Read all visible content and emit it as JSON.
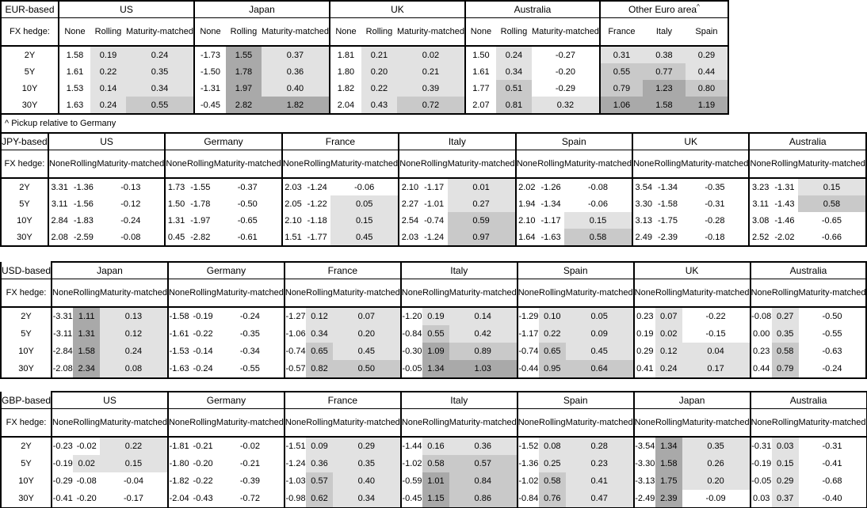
{
  "colors": {
    "shade_light": "#e2e2e2",
    "shade_medium": "#c9c9c9",
    "shade_dark": "#a9a9a9",
    "border": "#000000",
    "background": "#ffffff"
  },
  "footnote": "^ Pickup relative to Germany",
  "shared": {
    "fx_hedge_label": "FX hedge:",
    "col_headers": [
      "None",
      "Rolling",
      "Maturity-matched"
    ],
    "row_labels": [
      "2Y",
      "5Y",
      "10Y",
      "30Y"
    ]
  },
  "tables": [
    {
      "id": "eur",
      "base_label": "EUR-based",
      "groups": [
        {
          "name": "US",
          "rows": [
            [
              "1.58",
              "0.19",
              "0.24"
            ],
            [
              "1.61",
              "0.22",
              "0.35"
            ],
            [
              "1.53",
              "0.14",
              "0.34"
            ],
            [
              "1.63",
              "0.24",
              "0.55"
            ]
          ]
        },
        {
          "name": "Japan",
          "rows": [
            [
              "-1.73",
              "1.55",
              "0.37"
            ],
            [
              "-1.50",
              "1.78",
              "0.36"
            ],
            [
              "-1.31",
              "1.97",
              "0.40"
            ],
            [
              "-0.45",
              "2.82",
              "1.82"
            ]
          ]
        },
        {
          "name": "UK",
          "rows": [
            [
              "1.81",
              "0.21",
              "0.02"
            ],
            [
              "1.80",
              "0.20",
              "0.21"
            ],
            [
              "1.82",
              "0.22",
              "0.39"
            ],
            [
              "2.04",
              "0.43",
              "0.72"
            ]
          ]
        },
        {
          "name": "Australia",
          "rows": [
            [
              "1.50",
              "0.24",
              "-0.27"
            ],
            [
              "1.61",
              "0.34",
              "-0.20"
            ],
            [
              "1.77",
              "0.51",
              "-0.29"
            ],
            [
              "2.07",
              "0.81",
              "0.32"
            ]
          ]
        },
        {
          "name": "Other Euro area",
          "sup": "^",
          "shade_all": true,
          "cols": [
            "France",
            "Italy",
            "Spain"
          ],
          "rows": [
            [
              "0.31",
              "0.38",
              "0.29"
            ],
            [
              "0.55",
              "0.77",
              "0.44"
            ],
            [
              "0.79",
              "1.23",
              "0.80"
            ],
            [
              "1.06",
              "1.58",
              "1.19"
            ]
          ]
        }
      ]
    },
    {
      "id": "jpy",
      "base_label": "JPY-based",
      "groups": [
        {
          "name": "US",
          "rows": [
            [
              "3.31",
              "-1.36",
              "-0.13"
            ],
            [
              "3.11",
              "-1.56",
              "-0.12"
            ],
            [
              "2.84",
              "-1.83",
              "-0.24"
            ],
            [
              "2.08",
              "-2.59",
              "-0.08"
            ]
          ]
        },
        {
          "name": "Germany",
          "rows": [
            [
              "1.73",
              "-1.55",
              "-0.37"
            ],
            [
              "1.50",
              "-1.78",
              "-0.50"
            ],
            [
              "1.31",
              "-1.97",
              "-0.65"
            ],
            [
              "0.45",
              "-2.82",
              "-0.61"
            ]
          ]
        },
        {
          "name": "France",
          "rows": [
            [
              "2.03",
              "-1.24",
              "-0.06"
            ],
            [
              "2.05",
              "-1.22",
              "0.05"
            ],
            [
              "2.10",
              "-1.18",
              "0.15"
            ],
            [
              "1.51",
              "-1.77",
              "0.45"
            ]
          ]
        },
        {
          "name": "Italy",
          "rows": [
            [
              "2.10",
              "-1.17",
              "0.01"
            ],
            [
              "2.27",
              "-1.01",
              "0.27"
            ],
            [
              "2.54",
              "-0.74",
              "0.59"
            ],
            [
              "2.03",
              "-1.24",
              "0.97"
            ]
          ]
        },
        {
          "name": "Spain",
          "rows": [
            [
              "2.02",
              "-1.26",
              "-0.08"
            ],
            [
              "1.94",
              "-1.34",
              "-0.06"
            ],
            [
              "2.10",
              "-1.17",
              "0.15"
            ],
            [
              "1.64",
              "-1.63",
              "0.58"
            ]
          ]
        },
        {
          "name": "UK",
          "rows": [
            [
              "3.54",
              "-1.34",
              "-0.35"
            ],
            [
              "3.30",
              "-1.58",
              "-0.31"
            ],
            [
              "3.13",
              "-1.75",
              "-0.28"
            ],
            [
              "2.49",
              "-2.39",
              "-0.18"
            ]
          ]
        },
        {
          "name": "Australia",
          "rows": [
            [
              "3.23",
              "-1.31",
              "0.15"
            ],
            [
              "3.11",
              "-1.43",
              "0.58"
            ],
            [
              "3.08",
              "-1.46",
              "-0.65"
            ],
            [
              "2.52",
              "-2.02",
              "-0.66"
            ]
          ]
        }
      ]
    },
    {
      "id": "usd",
      "base_label": "USD-based",
      "groups": [
        {
          "name": "Japan",
          "rows": [
            [
              "-3.31",
              "1.11",
              "0.13"
            ],
            [
              "-3.11",
              "1.31",
              "0.12"
            ],
            [
              "-2.84",
              "1.58",
              "0.24"
            ],
            [
              "-2.08",
              "2.34",
              "0.08"
            ]
          ]
        },
        {
          "name": "Germany",
          "rows": [
            [
              "-1.58",
              "-0.19",
              "-0.24"
            ],
            [
              "-1.61",
              "-0.22",
              "-0.35"
            ],
            [
              "-1.53",
              "-0.14",
              "-0.34"
            ],
            [
              "-1.63",
              "-0.24",
              "-0.55"
            ]
          ]
        },
        {
          "name": "France",
          "rows": [
            [
              "-1.27",
              "0.12",
              "0.07"
            ],
            [
              "-1.06",
              "0.34",
              "0.20"
            ],
            [
              "-0.74",
              "0.65",
              "0.45"
            ],
            [
              "-0.57",
              "0.82",
              "0.50"
            ]
          ]
        },
        {
          "name": "Italy",
          "rows": [
            [
              "-1.20",
              "0.19",
              "0.14"
            ],
            [
              "-0.84",
              "0.55",
              "0.42"
            ],
            [
              "-0.30",
              "1.09",
              "0.89"
            ],
            [
              "-0.05",
              "1.34",
              "1.03"
            ]
          ]
        },
        {
          "name": "Spain",
          "rows": [
            [
              "-1.29",
              "0.10",
              "0.05"
            ],
            [
              "-1.17",
              "0.22",
              "0.09"
            ],
            [
              "-0.74",
              "0.65",
              "0.45"
            ],
            [
              "-0.44",
              "0.95",
              "0.64"
            ]
          ]
        },
        {
          "name": "UK",
          "rows": [
            [
              "0.23",
              "0.07",
              "-0.22"
            ],
            [
              "0.19",
              "0.02",
              "-0.15"
            ],
            [
              "0.29",
              "0.12",
              "0.04"
            ],
            [
              "0.41",
              "0.24",
              "0.17"
            ]
          ]
        },
        {
          "name": "Australia",
          "rows": [
            [
              "-0.08",
              "0.27",
              "-0.50"
            ],
            [
              "0.00",
              "0.35",
              "-0.55"
            ],
            [
              "0.23",
              "0.58",
              "-0.63"
            ],
            [
              "0.44",
              "0.79",
              "-0.24"
            ]
          ]
        }
      ]
    },
    {
      "id": "gbp",
      "base_label": "GBP-based",
      "groups": [
        {
          "name": "US",
          "rows": [
            [
              "-0.23",
              "-0.02",
              "0.22"
            ],
            [
              "-0.19",
              "0.02",
              "0.15"
            ],
            [
              "-0.29",
              "-0.08",
              "-0.04"
            ],
            [
              "-0.41",
              "-0.20",
              "-0.17"
            ]
          ]
        },
        {
          "name": "Germany",
          "rows": [
            [
              "-1.81",
              "-0.21",
              "-0.02"
            ],
            [
              "-1.80",
              "-0.20",
              "-0.21"
            ],
            [
              "-1.82",
              "-0.22",
              "-0.39"
            ],
            [
              "-2.04",
              "-0.43",
              "-0.72"
            ]
          ]
        },
        {
          "name": "France",
          "rows": [
            [
              "-1.51",
              "0.09",
              "0.29"
            ],
            [
              "-1.24",
              "0.36",
              "0.35"
            ],
            [
              "-1.03",
              "0.57",
              "0.40"
            ],
            [
              "-0.98",
              "0.62",
              "0.34"
            ]
          ]
        },
        {
          "name": "Italy",
          "rows": [
            [
              "-1.44",
              "0.16",
              "0.36"
            ],
            [
              "-1.02",
              "0.58",
              "0.57"
            ],
            [
              "-0.59",
              "1.01",
              "0.84"
            ],
            [
              "-0.45",
              "1.15",
              "0.86"
            ]
          ]
        },
        {
          "name": "Spain",
          "rows": [
            [
              "-1.52",
              "0.08",
              "0.28"
            ],
            [
              "-1.36",
              "0.25",
              "0.23"
            ],
            [
              "-1.02",
              "0.58",
              "0.41"
            ],
            [
              "-0.84",
              "0.76",
              "0.47"
            ]
          ]
        },
        {
          "name": "Japan",
          "rows": [
            [
              "-3.54",
              "1.34",
              "0.35"
            ],
            [
              "-3.30",
              "1.58",
              "0.26"
            ],
            [
              "-3.13",
              "1.75",
              "0.20"
            ],
            [
              "-2.49",
              "2.39",
              "-0.09"
            ]
          ]
        },
        {
          "name": "Australia",
          "rows": [
            [
              "-0.31",
              "0.03",
              "-0.31"
            ],
            [
              "-0.19",
              "0.15",
              "-0.41"
            ],
            [
              "-0.05",
              "0.29",
              "-0.68"
            ],
            [
              "0.03",
              "0.37",
              "-0.40"
            ]
          ]
        }
      ]
    }
  ]
}
